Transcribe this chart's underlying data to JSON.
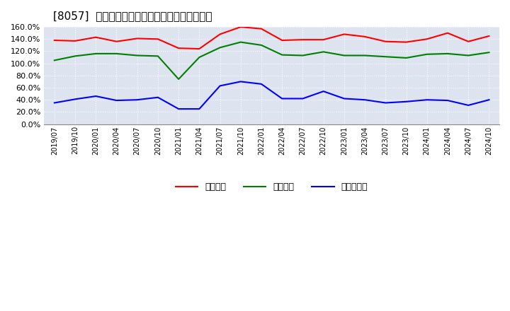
{
  "title": "[8057]  流動比率、当座比率、現預金比率の推移",
  "x_labels": [
    "2019/07",
    "2019/10",
    "2020/01",
    "2020/04",
    "2020/07",
    "2020/10",
    "2021/01",
    "2021/04",
    "2021/07",
    "2021/10",
    "2022/01",
    "2022/04",
    "2022/07",
    "2022/10",
    "2023/01",
    "2023/04",
    "2023/07",
    "2023/10",
    "2024/01",
    "2024/04",
    "2024/07",
    "2024/10"
  ],
  "ryudo": [
    138,
    137,
    143,
    136,
    141,
    140,
    125,
    124,
    148,
    160,
    157,
    138,
    139,
    139,
    148,
    144,
    136,
    135,
    140,
    150,
    136,
    145
  ],
  "toza": [
    105,
    112,
    116,
    116,
    113,
    112,
    74,
    110,
    126,
    135,
    130,
    114,
    113,
    119,
    113,
    113,
    111,
    109,
    115,
    116,
    113,
    118
  ],
  "genkin": [
    35,
    41,
    46,
    39,
    40,
    44,
    25,
    25,
    63,
    70,
    66,
    42,
    42,
    54,
    42,
    40,
    35,
    37,
    40,
    39,
    31,
    40
  ],
  "ryudo_color": "#ff0000",
  "toza_color": "#008000",
  "genkin_color": "#0000ff",
  "ylim": [
    0,
    160
  ],
  "yticks": [
    0,
    20,
    40,
    60,
    80,
    100,
    120,
    140,
    160
  ],
  "plot_bg_color": "#dde3ef",
  "fig_bg_color": "#ffffff",
  "grid_color": "#ffffff",
  "legend_labels": [
    "流動比率",
    "当座比率",
    "現預金比率"
  ],
  "title_prefix": "[8057]  ",
  "title_suffix": "流動比率、当座比率、現預金比率の推移"
}
